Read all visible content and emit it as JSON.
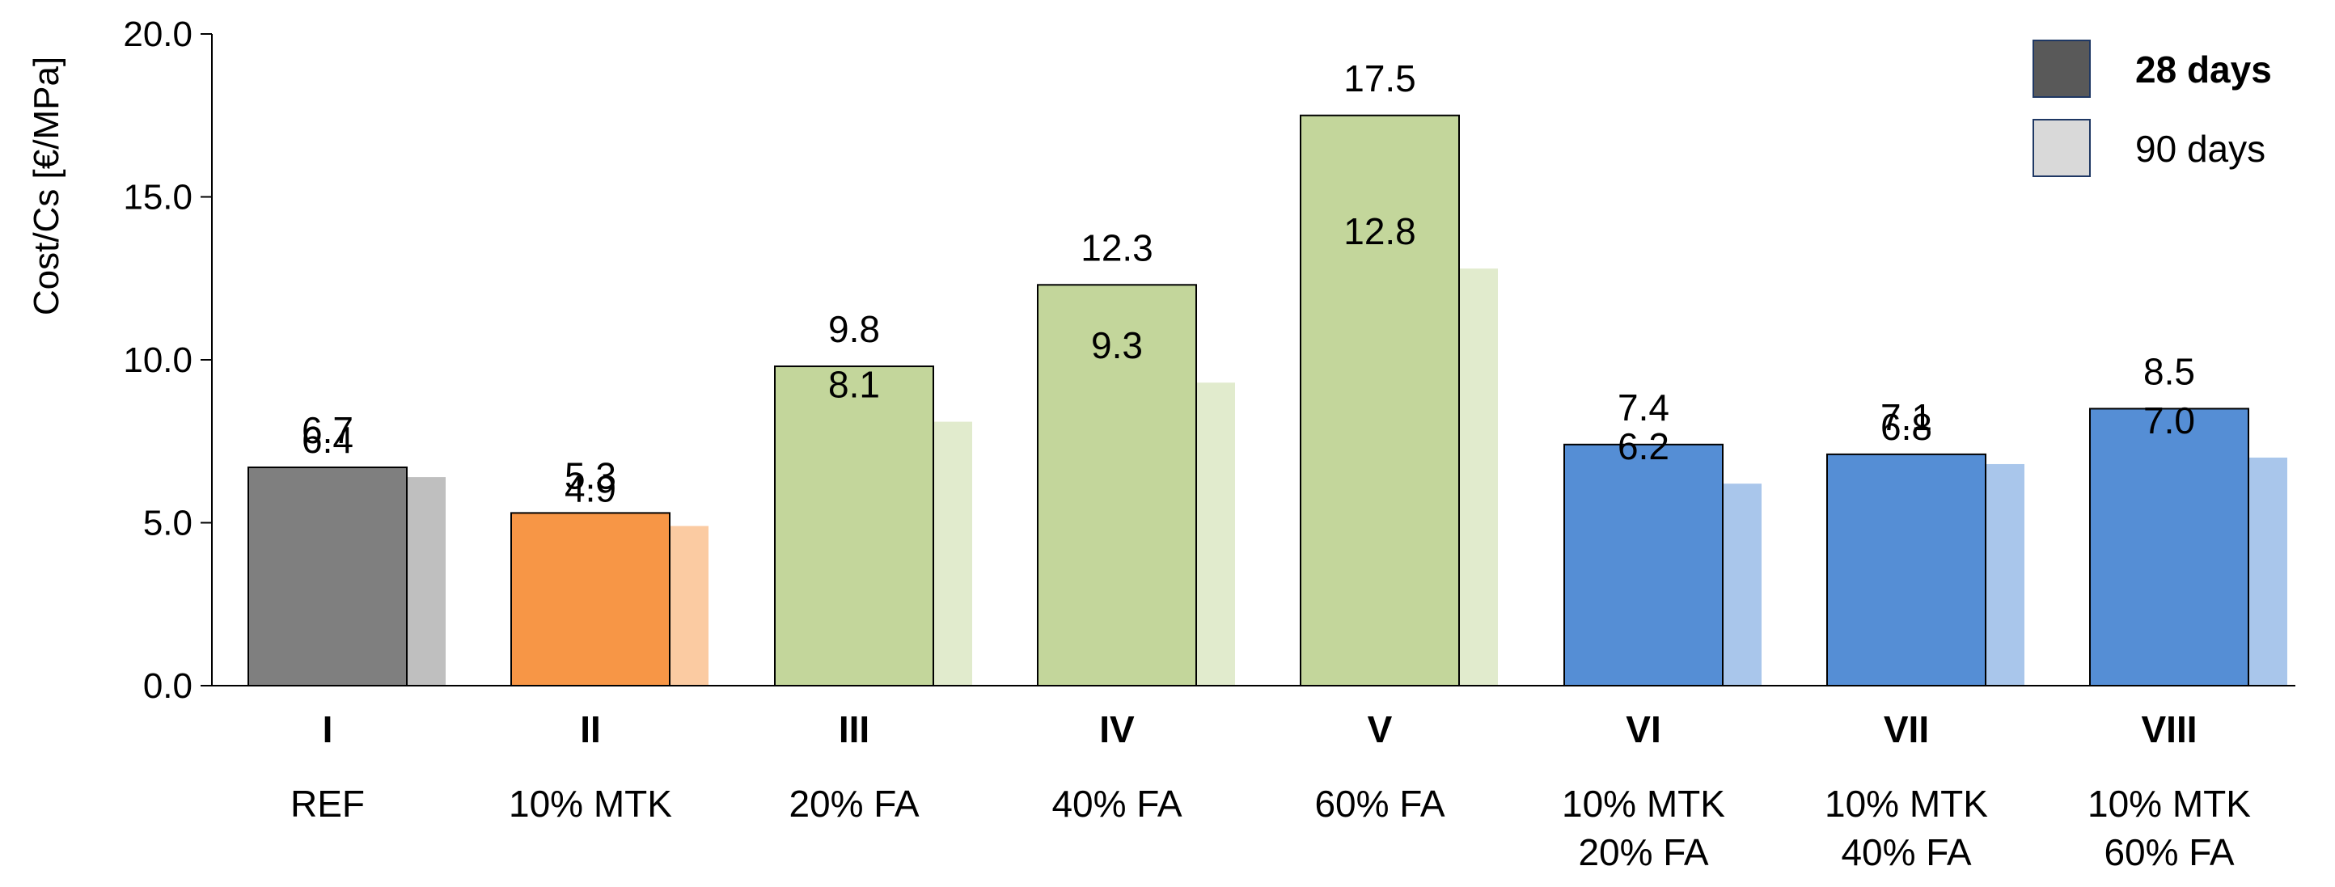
{
  "chart_data": {
    "type": "bar",
    "title": "",
    "xlabel": "",
    "ylabel": "Cost/Cs [€/MPa]",
    "ylim": [
      0,
      20
    ],
    "yticks": [
      "0.0",
      "5.0",
      "10.0",
      "15.0",
      "20.0"
    ],
    "grid": false,
    "legend_position": "top-right",
    "categories": [
      {
        "id": "I",
        "label_lines": [
          "REF"
        ]
      },
      {
        "id": "II",
        "label_lines": [
          "10% MTK"
        ]
      },
      {
        "id": "III",
        "label_lines": [
          "20% FA"
        ]
      },
      {
        "id": "IV",
        "label_lines": [
          "40% FA"
        ]
      },
      {
        "id": "V",
        "label_lines": [
          "60% FA"
        ]
      },
      {
        "id": "VI",
        "label_lines": [
          "10% MTK",
          "20% FA"
        ]
      },
      {
        "id": "VII",
        "label_lines": [
          "10% MTK",
          "40% FA"
        ]
      },
      {
        "id": "VIII",
        "label_lines": [
          "10% MTK",
          "60% FA"
        ]
      }
    ],
    "series": [
      {
        "name": "28 days",
        "values": [
          6.7,
          5.3,
          9.8,
          12.3,
          17.5,
          7.4,
          7.1,
          8.5
        ],
        "labels": [
          "6.7",
          "5.3",
          "9.8",
          "12.3",
          "17.5",
          "7.4",
          "7.1",
          "8.5"
        ]
      },
      {
        "name": "90 days",
        "values": [
          6.4,
          4.9,
          8.1,
          9.3,
          12.8,
          6.2,
          6.8,
          7.0
        ],
        "labels": [
          "6.4",
          "4.9",
          "8.1",
          "9.3",
          "12.8",
          "6.2",
          "6.8",
          "7.0"
        ]
      }
    ],
    "colors": {
      "28 days": [
        "#7f7f7f",
        "#f79646",
        "#c3d69b",
        "#c3d69b",
        "#c3d69b",
        "#558ed5",
        "#558ed5",
        "#558ed5"
      ],
      "90 days": [
        "#bfbfbf",
        "#fbcba2",
        "#e1ebcd",
        "#e1ebcd",
        "#e1ebcd",
        "#a9c6eb",
        "#a9c6eb",
        "#a9c6eb"
      ],
      "legend_28": "#595959",
      "legend_90": "#d9d9d9",
      "inner_label_light": "#ffffff"
    }
  }
}
